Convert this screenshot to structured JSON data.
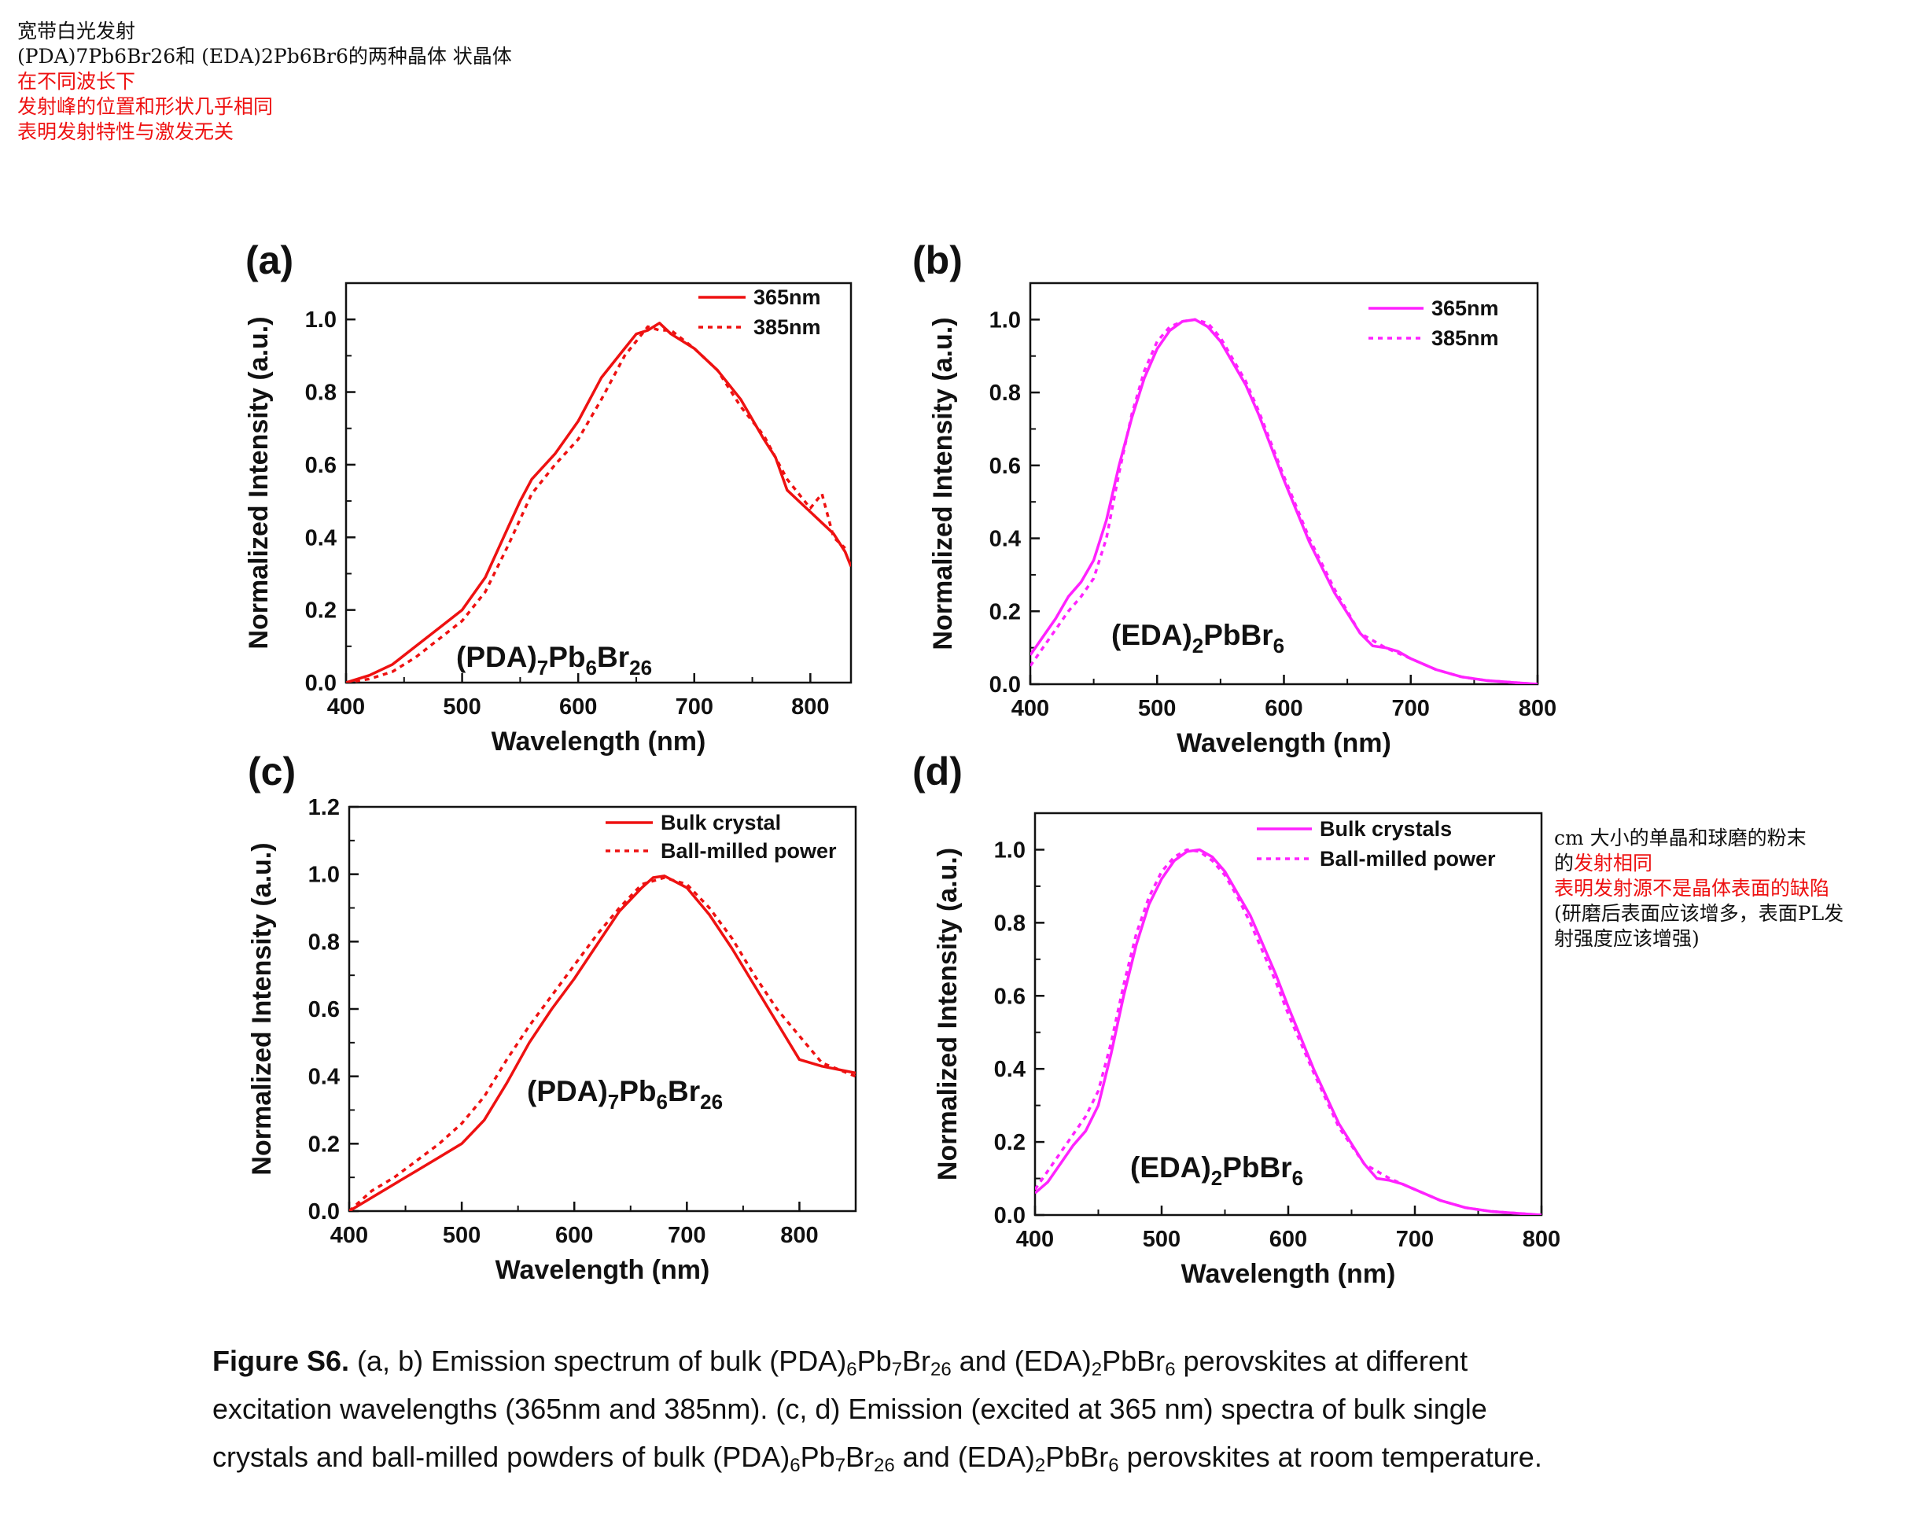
{
  "notes_top": [
    {
      "text": "宽带白光发射",
      "color": "#111111"
    },
    {
      "text": "(PDA)7Pb6Br26和 (EDA)2Pb6Br6的两种晶体 状晶体",
      "color": "#111111"
    },
    {
      "text": "在不同波长下",
      "color": "#ee1111"
    },
    {
      "text": "发射峰的位置和形状几乎相同",
      "color": "#ee1111"
    },
    {
      "text": "表明发射特性与激发无关",
      "color": "#ee1111"
    }
  ],
  "notes_side": [
    {
      "text": "cm 大小的单晶和球磨的粉末",
      "color": "#111111"
    },
    {
      "text": "的发射相同",
      "color": "#ee1111",
      "prefix": "的",
      "rest": "发射相同"
    },
    {
      "text": "表明发射源不是晶体表面的缺陷",
      "color": "#ee1111"
    },
    {
      "text": "(研磨后表面应该增多，表面PL发",
      "color": "#111111"
    },
    {
      "text": "射强度应该增强)",
      "color": "#111111"
    }
  ],
  "caption": {
    "label": "Figure S6.",
    "line1": " (a, b) Emission spectrum of bulk (PDA)",
    "line1b": "Pb",
    "line1c": "Br",
    "line1d": " and (EDA)",
    "line1e": "PbBr",
    "line1f": " perovskites at different",
    "line2": "excitation wavelengths (365nm and 385nm). (c, d) Emission (excited at 365 nm) spectra of bulk single",
    "line3": "crystals and ball-milled powders of bulk (PDA)",
    "line3b": "Pb",
    "line3c": "Br",
    "line3d": " and (EDA)",
    "line3e": "PbBr",
    "line3f": " perovskites at room temperature.",
    "sub6": "6",
    "sub7": "7",
    "sub26": "26",
    "sub2": "2"
  },
  "colors": {
    "red": "#ee1111",
    "magenta": "#ff22ff"
  },
  "chart_data": [
    {
      "panel": "(a)",
      "type": "line",
      "compound": {
        "base1": "(PDA)",
        "s1": "7",
        "base2": "Pb",
        "s2": "6",
        "base3": "Br",
        "s3": "26"
      },
      "xlabel": "Wavelength (nm)",
      "ylabel": "Normalized Intensity (a.u.)",
      "xlim": [
        400,
        835
      ],
      "ylim": [
        0,
        1.1
      ],
      "xticks": [
        400,
        500,
        600,
        700,
        800
      ],
      "yticks": [
        0.0,
        0.2,
        0.4,
        0.6,
        0.8,
        1.0
      ],
      "ytick_labels": [
        "0.0",
        "0.2",
        "0.4",
        "0.6",
        "0.8",
        "1.0"
      ],
      "legend_position": "top-right",
      "color": "#ee1111",
      "series": [
        {
          "name": "365nm",
          "style": "solid",
          "x": [
            400,
            420,
            440,
            460,
            480,
            500,
            520,
            540,
            550,
            560,
            580,
            600,
            620,
            640,
            650,
            660,
            670,
            680,
            700,
            720,
            740,
            760,
            770,
            780,
            790,
            800,
            810,
            820,
            830,
            835
          ],
          "y": [
            0.0,
            0.02,
            0.05,
            0.1,
            0.15,
            0.2,
            0.29,
            0.43,
            0.5,
            0.56,
            0.63,
            0.72,
            0.84,
            0.92,
            0.96,
            0.97,
            0.99,
            0.96,
            0.92,
            0.86,
            0.78,
            0.67,
            0.62,
            0.53,
            0.5,
            0.47,
            0.44,
            0.41,
            0.36,
            0.32
          ]
        },
        {
          "name": "385nm",
          "style": "dotted",
          "x": [
            400,
            420,
            440,
            460,
            480,
            500,
            520,
            540,
            560,
            580,
            600,
            620,
            640,
            650,
            660,
            670,
            680,
            700,
            720,
            740,
            760,
            780,
            800,
            810,
            820,
            830
          ],
          "y": [
            0.0,
            0.01,
            0.03,
            0.07,
            0.12,
            0.17,
            0.25,
            0.38,
            0.52,
            0.6,
            0.67,
            0.78,
            0.9,
            0.94,
            0.98,
            0.97,
            0.97,
            0.92,
            0.86,
            0.76,
            0.68,
            0.56,
            0.48,
            0.52,
            0.4,
            0.37
          ]
        }
      ]
    },
    {
      "panel": "(b)",
      "type": "line",
      "compound": {
        "base1": "(EDA)",
        "s1": "2",
        "base2": "PbBr",
        "s2": "6"
      },
      "xlabel": "Wavelength (nm)",
      "ylabel": "Normalized Intensity (a.u.)",
      "xlim": [
        400,
        800
      ],
      "ylim": [
        0,
        1.1
      ],
      "xticks": [
        400,
        500,
        600,
        700,
        800
      ],
      "yticks": [
        0.0,
        0.2,
        0.4,
        0.6,
        0.8,
        1.0
      ],
      "ytick_labels": [
        "0.0",
        "0.2",
        "0.4",
        "0.6",
        "0.8",
        "1.0"
      ],
      "legend_position": "top-right",
      "color": "#ff22ff",
      "series": [
        {
          "name": "365nm",
          "style": "solid",
          "x": [
            400,
            410,
            420,
            430,
            440,
            450,
            460,
            470,
            480,
            490,
            500,
            510,
            520,
            530,
            540,
            550,
            560,
            570,
            580,
            590,
            600,
            620,
            640,
            660,
            670,
            680,
            690,
            700,
            720,
            740,
            760,
            780,
            800
          ],
          "y": [
            0.08,
            0.13,
            0.18,
            0.24,
            0.28,
            0.34,
            0.45,
            0.6,
            0.73,
            0.84,
            0.92,
            0.97,
            0.995,
            1.0,
            0.98,
            0.94,
            0.88,
            0.82,
            0.74,
            0.65,
            0.56,
            0.39,
            0.25,
            0.14,
            0.105,
            0.1,
            0.09,
            0.07,
            0.04,
            0.02,
            0.01,
            0.005,
            0.0
          ]
        },
        {
          "name": "385nm",
          "style": "dotted",
          "x": [
            400,
            410,
            420,
            430,
            440,
            450,
            460,
            470,
            480,
            490,
            500,
            510,
            520,
            530,
            540,
            550,
            560,
            570,
            580,
            590,
            600,
            620,
            640,
            660,
            680,
            700,
            720,
            740,
            760,
            780,
            800
          ],
          "y": [
            0.05,
            0.1,
            0.15,
            0.2,
            0.24,
            0.29,
            0.4,
            0.58,
            0.74,
            0.86,
            0.94,
            0.98,
            0.995,
            1.0,
            0.99,
            0.95,
            0.89,
            0.83,
            0.75,
            0.66,
            0.57,
            0.4,
            0.26,
            0.14,
            0.1,
            0.07,
            0.04,
            0.02,
            0.01,
            0.005,
            0.0
          ]
        }
      ]
    },
    {
      "panel": "(c)",
      "type": "line",
      "compound": {
        "base1": "(PDA)",
        "s1": "7",
        "base2": "Pb",
        "s2": "6",
        "base3": "Br",
        "s3": "26"
      },
      "xlabel": "Wavelength (nm)",
      "ylabel": "Normalized Intensity (a.u.)",
      "xlim": [
        400,
        850
      ],
      "ylim": [
        0,
        1.2
      ],
      "xticks": [
        400,
        500,
        600,
        700,
        800
      ],
      "yticks": [
        0.0,
        0.2,
        0.4,
        0.6,
        0.8,
        1.0,
        1.2
      ],
      "ytick_labels": [
        "0.0",
        "0.2",
        "0.4",
        "0.6",
        "0.8",
        "1.0",
        "1.2"
      ],
      "legend_position": "top-right",
      "color": "#ee1111",
      "series": [
        {
          "name": "Bulk crystal",
          "style": "solid",
          "x": [
            400,
            420,
            440,
            460,
            480,
            500,
            520,
            540,
            560,
            580,
            600,
            620,
            640,
            660,
            670,
            680,
            700,
            720,
            740,
            760,
            780,
            800,
            820,
            850
          ],
          "y": [
            0.0,
            0.04,
            0.08,
            0.12,
            0.16,
            0.2,
            0.27,
            0.38,
            0.5,
            0.6,
            0.69,
            0.79,
            0.89,
            0.96,
            0.99,
            0.995,
            0.96,
            0.88,
            0.78,
            0.67,
            0.56,
            0.45,
            0.43,
            0.41
          ]
        },
        {
          "name": "Ball-milled power",
          "style": "dotted",
          "x": [
            400,
            420,
            440,
            460,
            480,
            500,
            520,
            540,
            560,
            580,
            600,
            620,
            640,
            660,
            680,
            700,
            720,
            740,
            760,
            780,
            800,
            820,
            850
          ],
          "y": [
            0.0,
            0.06,
            0.1,
            0.15,
            0.2,
            0.26,
            0.34,
            0.45,
            0.55,
            0.64,
            0.73,
            0.82,
            0.9,
            0.97,
            0.99,
            0.97,
            0.9,
            0.81,
            0.7,
            0.6,
            0.52,
            0.44,
            0.4
          ]
        }
      ]
    },
    {
      "panel": "(d)",
      "type": "line",
      "compound": {
        "base1": "(EDA)",
        "s1": "2",
        "base2": "PbBr",
        "s2": "6"
      },
      "xlabel": "Wavelength (nm)",
      "ylabel": "Normalized Intensity (a.u.)",
      "xlim": [
        400,
        800
      ],
      "ylim": [
        0,
        1.1
      ],
      "xticks": [
        400,
        500,
        600,
        700,
        800
      ],
      "yticks": [
        0.0,
        0.2,
        0.4,
        0.6,
        0.8,
        1.0
      ],
      "ytick_labels": [
        "0.0",
        "0.2",
        "0.4",
        "0.6",
        "0.8",
        "1.0"
      ],
      "legend_position": "top-right",
      "color": "#ff22ff",
      "series": [
        {
          "name": "Bulk crystals",
          "style": "solid",
          "x": [
            400,
            410,
            420,
            430,
            440,
            450,
            460,
            470,
            480,
            490,
            500,
            510,
            520,
            530,
            540,
            550,
            560,
            570,
            580,
            590,
            600,
            620,
            640,
            660,
            670,
            680,
            690,
            700,
            720,
            740,
            760,
            780,
            800
          ],
          "y": [
            0.06,
            0.09,
            0.14,
            0.19,
            0.23,
            0.3,
            0.44,
            0.6,
            0.74,
            0.85,
            0.92,
            0.97,
            0.995,
            1.0,
            0.98,
            0.94,
            0.88,
            0.82,
            0.74,
            0.66,
            0.57,
            0.4,
            0.25,
            0.14,
            0.1,
            0.095,
            0.085,
            0.07,
            0.04,
            0.02,
            0.01,
            0.005,
            0.0
          ]
        },
        {
          "name": "Ball-milled power",
          "style": "dotted",
          "x": [
            400,
            410,
            420,
            430,
            440,
            450,
            460,
            470,
            480,
            490,
            500,
            510,
            520,
            530,
            540,
            550,
            560,
            570,
            580,
            590,
            600,
            620,
            640,
            660,
            680,
            700,
            720,
            740,
            760,
            780,
            800
          ],
          "y": [
            0.07,
            0.12,
            0.17,
            0.22,
            0.27,
            0.34,
            0.47,
            0.63,
            0.77,
            0.87,
            0.94,
            0.98,
            1.0,
            0.995,
            0.97,
            0.93,
            0.87,
            0.8,
            0.72,
            0.64,
            0.55,
            0.39,
            0.24,
            0.14,
            0.1,
            0.07,
            0.04,
            0.02,
            0.01,
            0.005,
            0.0
          ]
        }
      ]
    }
  ]
}
